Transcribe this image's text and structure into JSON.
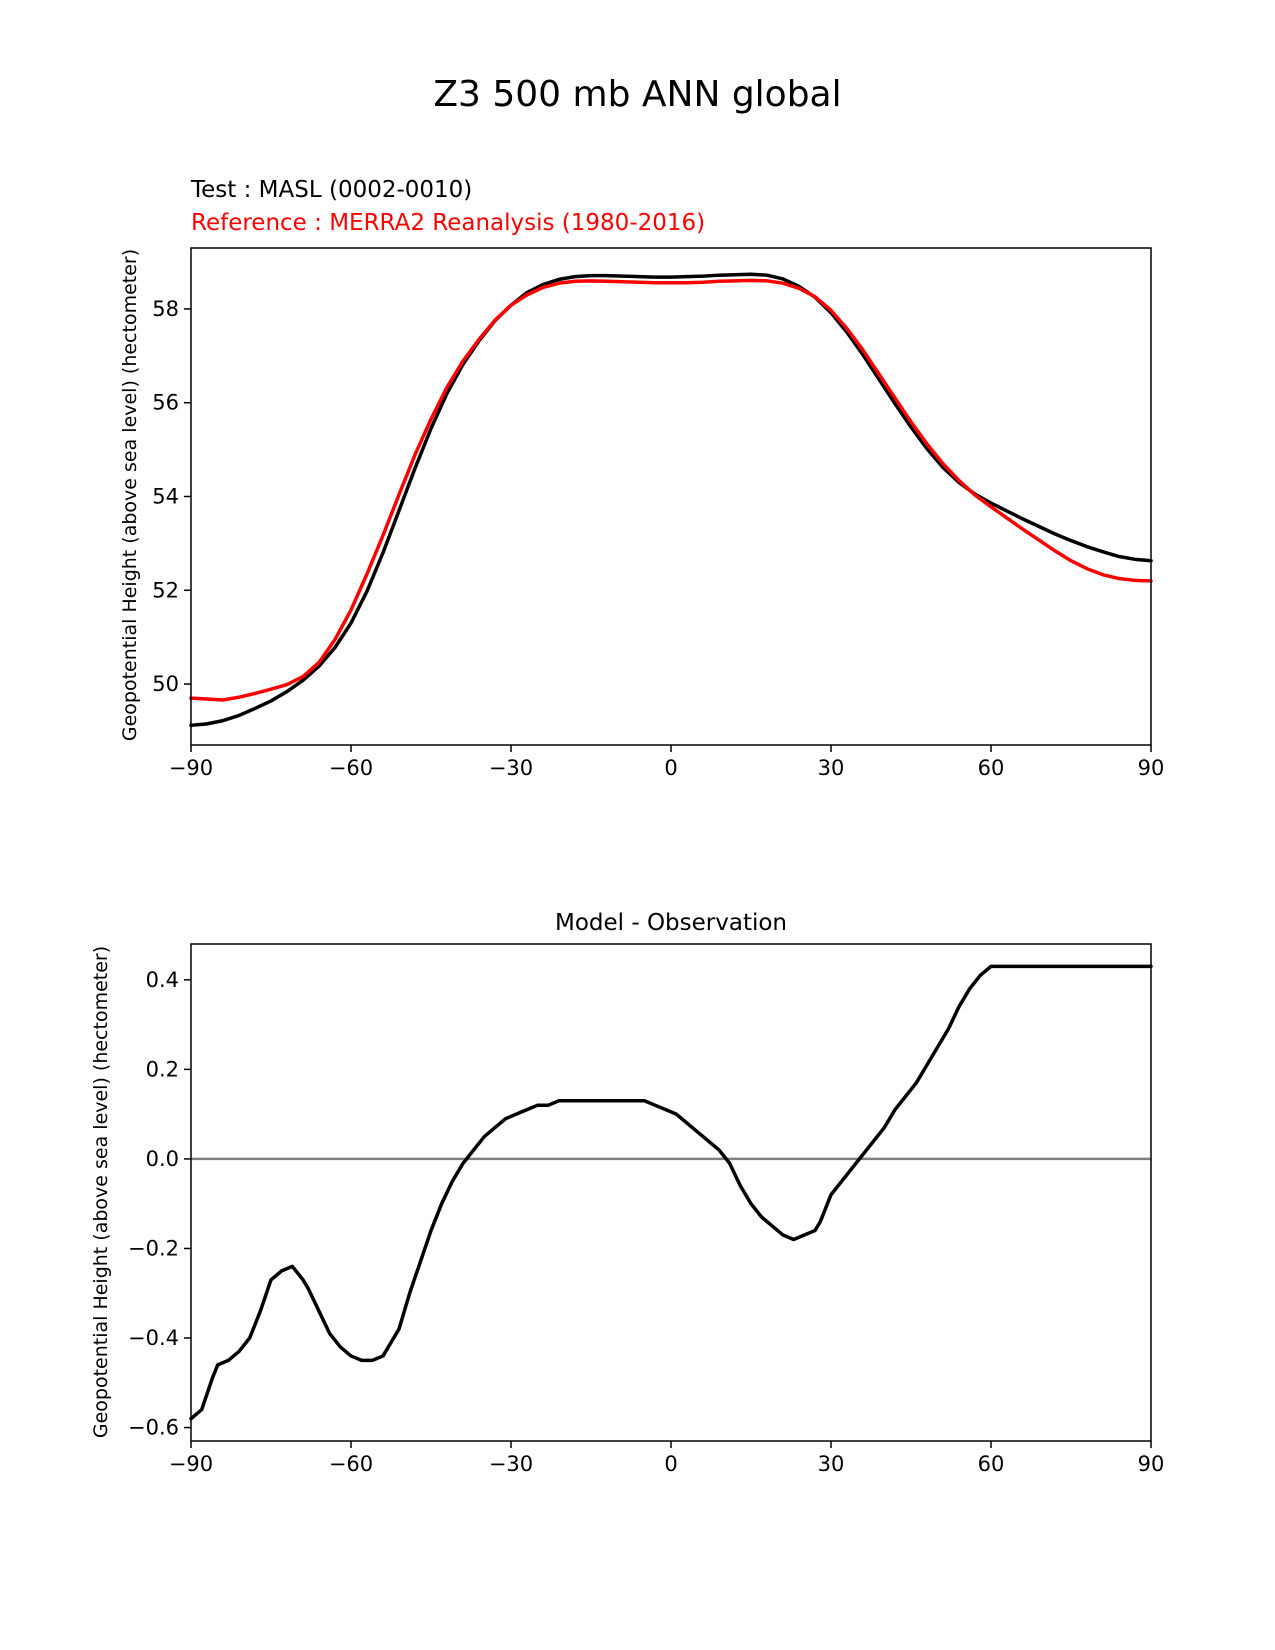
{
  "figure": {
    "title": "Z3 500 mb ANN global"
  },
  "chart_data": [
    {
      "type": "line",
      "title_test": "Test : MASL (0002-0010)",
      "title_reference": "Reference : MERRA2 Reanalysis (1980-2016)",
      "xlabel": "",
      "ylabel": "Geopotential Height (above sea level) (hectometer)",
      "xlim": [
        -90,
        90
      ],
      "ylim": [
        48.7,
        59.3
      ],
      "xticks": [
        -90,
        -60,
        -30,
        0,
        30,
        60,
        90
      ],
      "xtick_labels": [
        "−90",
        "−60",
        "−30",
        "0",
        "30",
        "60",
        "90"
      ],
      "yticks": [
        50,
        52,
        54,
        56,
        58
      ],
      "ytick_labels": [
        "50",
        "52",
        "54",
        "56",
        "58"
      ],
      "series": [
        {
          "name": "Test : MASL (0002-0010)",
          "color": "#000000",
          "x": [
            -90,
            -87,
            -84,
            -81,
            -78,
            -75,
            -72,
            -69,
            -66,
            -63,
            -60,
            -57,
            -54,
            -51,
            -48,
            -45,
            -42,
            -39,
            -36,
            -33,
            -30,
            -27,
            -24,
            -21,
            -18,
            -15,
            -12,
            -9,
            -6,
            -3,
            0,
            3,
            6,
            9,
            12,
            15,
            18,
            21,
            24,
            27,
            30,
            33,
            36,
            39,
            42,
            45,
            48,
            51,
            54,
            57,
            60,
            63,
            66,
            69,
            72,
            75,
            78,
            81,
            84,
            87,
            90
          ],
          "y": [
            49.12,
            49.15,
            49.22,
            49.33,
            49.48,
            49.64,
            49.84,
            50.08,
            50.38,
            50.78,
            51.3,
            51.98,
            52.8,
            53.7,
            54.6,
            55.45,
            56.2,
            56.82,
            57.32,
            57.75,
            58.08,
            58.35,
            58.52,
            58.63,
            58.69,
            58.71,
            58.71,
            58.7,
            58.69,
            58.68,
            58.68,
            58.69,
            58.7,
            58.72,
            58.73,
            58.74,
            58.72,
            58.64,
            58.48,
            58.25,
            57.92,
            57.5,
            57.02,
            56.5,
            55.98,
            55.48,
            55.02,
            54.62,
            54.3,
            54.05,
            53.86,
            53.69,
            53.52,
            53.36,
            53.2,
            53.06,
            52.93,
            52.82,
            52.72,
            52.66,
            52.63
          ]
        },
        {
          "name": "Reference : MERRA2 Reanalysis (1980-2016)",
          "color": "#ff0000",
          "x": [
            -90,
            -87,
            -84,
            -81,
            -78,
            -75,
            -72,
            -69,
            -66,
            -63,
            -60,
            -57,
            -54,
            -51,
            -48,
            -45,
            -42,
            -39,
            -36,
            -33,
            -30,
            -27,
            -24,
            -21,
            -18,
            -15,
            -12,
            -9,
            -6,
            -3,
            0,
            3,
            6,
            9,
            12,
            15,
            18,
            21,
            24,
            27,
            30,
            33,
            36,
            39,
            42,
            45,
            48,
            51,
            54,
            57,
            60,
            63,
            66,
            69,
            72,
            75,
            78,
            81,
            84,
            87,
            90
          ],
          "y": [
            49.7,
            49.68,
            49.66,
            49.72,
            49.8,
            49.89,
            49.99,
            50.16,
            50.46,
            50.95,
            51.58,
            52.35,
            53.17,
            54.04,
            54.89,
            55.65,
            56.33,
            56.89,
            57.35,
            57.76,
            58.08,
            58.3,
            58.46,
            58.55,
            58.59,
            58.6,
            58.59,
            58.58,
            58.57,
            58.56,
            58.56,
            58.56,
            58.57,
            58.59,
            58.6,
            58.61,
            58.6,
            58.55,
            58.44,
            58.26,
            57.97,
            57.58,
            57.12,
            56.61,
            56.1,
            55.59,
            55.12,
            54.7,
            54.34,
            54.03,
            53.78,
            53.54,
            53.3,
            53.07,
            52.84,
            52.63,
            52.46,
            52.33,
            52.25,
            52.21,
            52.2
          ]
        }
      ]
    },
    {
      "type": "line",
      "title": "Model - Observation",
      "xlabel": "",
      "ylabel": "Geopotential Height (above sea level) (hectometer)",
      "xlim": [
        -90,
        90
      ],
      "ylim": [
        -0.63,
        0.48
      ],
      "xticks": [
        -90,
        -60,
        -30,
        0,
        30,
        60,
        90
      ],
      "xtick_labels": [
        "−90",
        "−60",
        "−30",
        "0",
        "30",
        "60",
        "90"
      ],
      "yticks": [
        -0.6,
        -0.4,
        -0.2,
        0.0,
        0.2,
        0.4
      ],
      "ytick_labels": [
        "−0.6",
        "−0.4",
        "−0.2",
        "0.0",
        "0.2",
        "0.4"
      ],
      "zero_line": {
        "y": 0.0,
        "color": "#808080"
      },
      "series": [
        {
          "name": "Model - Observation",
          "color": "#000000",
          "x": [
            -90,
            -88,
            -86,
            -85,
            -83,
            -81,
            -79,
            -77,
            -75,
            -73,
            -71,
            -69,
            -68,
            -66,
            -64,
            -62,
            -60,
            -58,
            -56,
            -54,
            -53,
            -51,
            -49,
            -47,
            -45,
            -43,
            -41,
            -39,
            -37,
            -35,
            -33,
            -31,
            -29,
            -27,
            -25,
            -23,
            -21,
            -19,
            -17,
            -15,
            -13,
            -11,
            -9,
            -7,
            -5,
            -3,
            -1,
            1,
            3,
            5,
            7,
            9,
            11,
            13,
            15,
            17,
            19,
            21,
            23,
            25,
            27,
            28,
            29,
            30,
            32,
            34,
            36,
            38,
            40,
            42,
            44,
            46,
            48,
            50,
            52,
            54,
            56,
            58,
            60,
            62,
            64,
            66,
            68,
            70,
            72,
            74,
            76,
            78,
            80,
            82,
            84,
            86,
            88,
            90
          ],
          "y": [
            -0.58,
            -0.56,
            -0.49,
            -0.46,
            -0.45,
            -0.43,
            -0.4,
            -0.34,
            -0.27,
            -0.25,
            -0.24,
            -0.27,
            -0.29,
            -0.34,
            -0.39,
            -0.42,
            -0.44,
            -0.45,
            -0.45,
            -0.44,
            -0.42,
            -0.38,
            -0.3,
            -0.23,
            -0.16,
            -0.1,
            -0.05,
            -0.01,
            0.02,
            0.05,
            0.07,
            0.09,
            0.1,
            0.11,
            0.12,
            0.12,
            0.13,
            0.13,
            0.13,
            0.13,
            0.13,
            0.13,
            0.13,
            0.13,
            0.13,
            0.12,
            0.11,
            0.1,
            0.08,
            0.06,
            0.04,
            0.02,
            -0.01,
            -0.06,
            -0.1,
            -0.13,
            -0.15,
            -0.17,
            -0.18,
            -0.17,
            -0.16,
            -0.14,
            -0.11,
            -0.08,
            -0.05,
            -0.02,
            0.01,
            0.04,
            0.07,
            0.11,
            0.14,
            0.17,
            0.21,
            0.25,
            0.29,
            0.34,
            0.38,
            0.41,
            0.43,
            0.43,
            0.43,
            0.43,
            0.43,
            0.43,
            0.43,
            0.43,
            0.43,
            0.43,
            0.43,
            0.43,
            0.43,
            0.43,
            0.43,
            0.43
          ]
        }
      ]
    }
  ]
}
